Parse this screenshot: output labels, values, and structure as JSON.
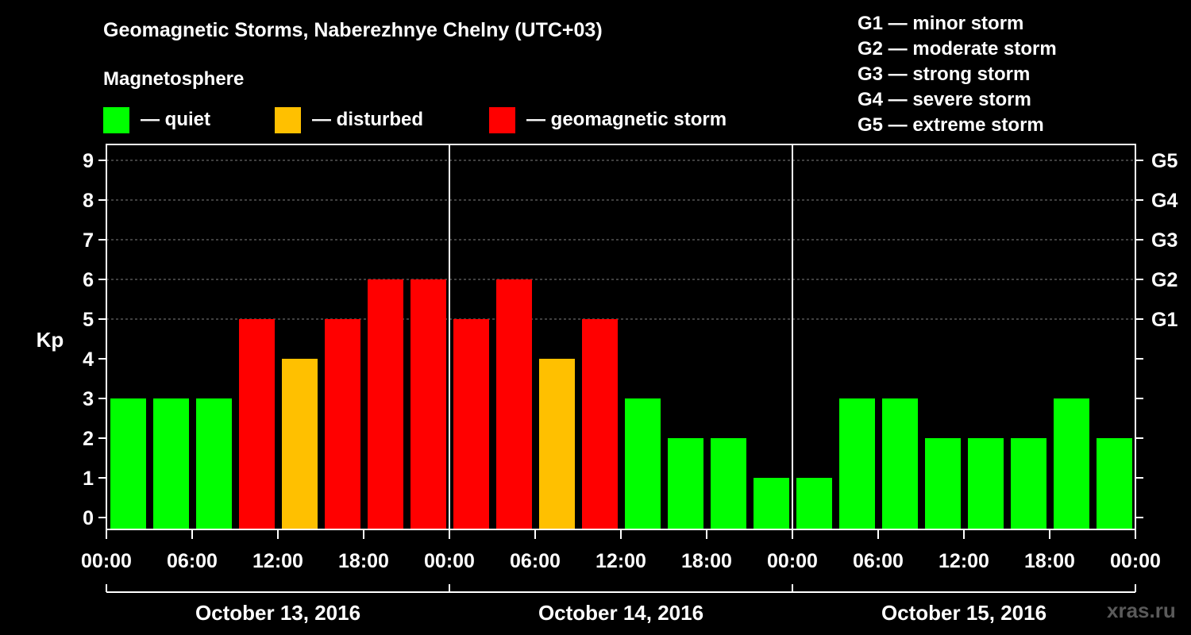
{
  "title": "Geomagnetic Storms, Naberezhnye Chelny (UTC+03)",
  "magnetosphere_label": "Magnetosphere",
  "legend": [
    {
      "label": "— quiet",
      "color": "#00ff00"
    },
    {
      "label": "— disturbed",
      "color": "#ffc000"
    },
    {
      "label": "— geomagnetic storm",
      "color": "#ff0000"
    }
  ],
  "storm_scale": [
    "G1 — minor storm",
    "G2 — moderate storm",
    "G3 — strong storm",
    "G4 — severe storm",
    "G5 — extreme storm"
  ],
  "watermark": "xras.ru",
  "chart_data": {
    "type": "bar",
    "ylabel": "Kp",
    "ylim": [
      0,
      9
    ],
    "yticks": [
      0,
      1,
      2,
      3,
      4,
      5,
      6,
      7,
      8,
      9
    ],
    "right_axis_labels": [
      {
        "kp": 5,
        "label": "G1"
      },
      {
        "kp": 6,
        "label": "G2"
      },
      {
        "kp": 7,
        "label": "G3"
      },
      {
        "kp": 8,
        "label": "G4"
      },
      {
        "kp": 9,
        "label": "G5"
      }
    ],
    "xtick_labels": [
      "00:00",
      "06:00",
      "12:00",
      "18:00",
      "00:00",
      "06:00",
      "12:00",
      "18:00",
      "00:00",
      "06:00",
      "12:00",
      "18:00",
      "00:00"
    ],
    "days": [
      "October 13, 2016",
      "October 14, 2016",
      "October 15, 2016"
    ],
    "interval_hours": 3,
    "values": [
      3,
      3,
      3,
      5,
      4,
      5,
      6,
      6,
      5,
      6,
      4,
      5,
      3,
      2,
      2,
      1,
      1,
      3,
      3,
      2,
      2,
      2,
      3,
      2
    ],
    "colors": {
      "quiet": "#00ff00",
      "disturbed": "#ffc000",
      "storm": "#ff0000"
    },
    "grid": "dashed at Kp 5-9",
    "legend_placement": "top-left"
  }
}
